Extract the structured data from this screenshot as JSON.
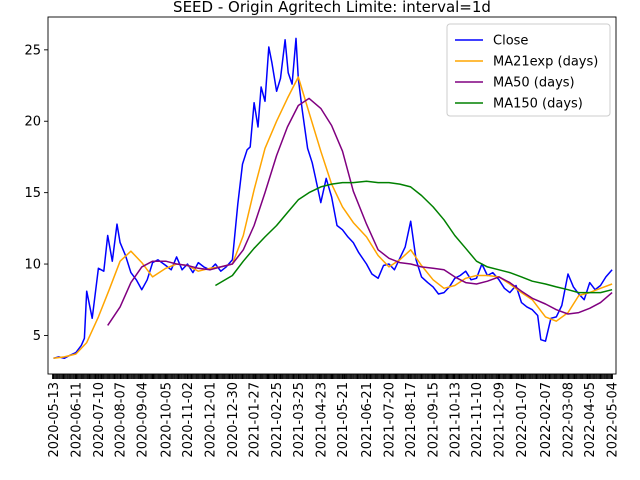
{
  "chart_data": {
    "type": "line",
    "title": "SEED - Origin Agritech Limite: interval=1d",
    "xlabel": "",
    "ylabel": "",
    "ylim": [
      2.3,
      27.3
    ],
    "yticks": [
      5,
      10,
      15,
      20,
      25
    ],
    "xlim": [
      "2020-05-06",
      "2022-05-09"
    ],
    "xtick_labels": [
      "2020-05-13",
      "2020-06-11",
      "2020-07-10",
      "2020-08-07",
      "2020-09-04",
      "2020-10-05",
      "2020-11-02",
      "2020-12-01",
      "2020-12-30",
      "2021-01-27",
      "2021-02-25",
      "2021-03-25",
      "2021-04-23",
      "2021-05-21",
      "2021-06-21",
      "2021-07-20",
      "2021-08-17",
      "2021-09-15",
      "2021-10-13",
      "2021-11-10",
      "2021-12-09",
      "2022-01-07",
      "2022-02-07",
      "2022-03-08",
      "2022-04-05",
      "2022-05-04"
    ],
    "grid": false,
    "legend_position": "top-right",
    "series": [
      {
        "name": "Close",
        "color": "#0000ff",
        "x": [
          "2020-05-13",
          "2020-05-20",
          "2020-05-27",
          "2020-06-03",
          "2020-06-11",
          "2020-06-18",
          "2020-06-22",
          "2020-06-25",
          "2020-07-02",
          "2020-07-10",
          "2020-07-17",
          "2020-07-22",
          "2020-07-28",
          "2020-08-03",
          "2020-08-07",
          "2020-08-14",
          "2020-08-21",
          "2020-08-28",
          "2020-09-04",
          "2020-09-11",
          "2020-09-18",
          "2020-09-25",
          "2020-10-05",
          "2020-10-12",
          "2020-10-19",
          "2020-10-26",
          "2020-11-02",
          "2020-11-09",
          "2020-11-16",
          "2020-11-23",
          "2020-12-01",
          "2020-12-08",
          "2020-12-15",
          "2020-12-22",
          "2020-12-30",
          "2021-01-06",
          "2021-01-12",
          "2021-01-18",
          "2021-01-22",
          "2021-01-27",
          "2021-02-01",
          "2021-02-05",
          "2021-02-10",
          "2021-02-15",
          "2021-02-19",
          "2021-02-25",
          "2021-03-02",
          "2021-03-08",
          "2021-03-12",
          "2021-03-17",
          "2021-03-22",
          "2021-03-25",
          "2021-03-30",
          "2021-04-06",
          "2021-04-12",
          "2021-04-16",
          "2021-04-23",
          "2021-04-30",
          "2021-05-07",
          "2021-05-14",
          "2021-05-21",
          "2021-05-28",
          "2021-06-04",
          "2021-06-11",
          "2021-06-21",
          "2021-06-28",
          "2021-07-06",
          "2021-07-13",
          "2021-07-20",
          "2021-07-27",
          "2021-08-03",
          "2021-08-10",
          "2021-08-17",
          "2021-08-24",
          "2021-08-31",
          "2021-09-08",
          "2021-09-15",
          "2021-09-22",
          "2021-09-29",
          "2021-10-06",
          "2021-10-13",
          "2021-10-20",
          "2021-10-27",
          "2021-11-03",
          "2021-11-10",
          "2021-11-17",
          "2021-11-24",
          "2021-12-01",
          "2021-12-09",
          "2021-12-16",
          "2021-12-23",
          "2021-12-31",
          "2022-01-07",
          "2022-01-14",
          "2022-01-21",
          "2022-01-28",
          "2022-02-01",
          "2022-02-07",
          "2022-02-14",
          "2022-02-21",
          "2022-02-28",
          "2022-03-08",
          "2022-03-15",
          "2022-03-22",
          "2022-03-29",
          "2022-04-05",
          "2022-04-12",
          "2022-04-19",
          "2022-04-26",
          "2022-05-04"
        ],
        "y": [
          3.4,
          3.5,
          3.4,
          3.6,
          3.8,
          4.3,
          4.8,
          8.1,
          6.2,
          9.7,
          9.5,
          12.0,
          10.2,
          12.8,
          11.5,
          10.6,
          9.4,
          8.9,
          8.2,
          8.9,
          10.1,
          10.3,
          9.9,
          9.6,
          10.5,
          9.6,
          10.0,
          9.4,
          10.1,
          9.8,
          9.6,
          10.0,
          9.5,
          9.8,
          10.3,
          14.2,
          17.0,
          18.0,
          18.2,
          21.3,
          19.6,
          22.4,
          21.4,
          25.2,
          24.1,
          22.1,
          23.0,
          25.7,
          23.4,
          22.6,
          25.8,
          23.0,
          20.8,
          18.1,
          17.1,
          16.1,
          14.3,
          16.0,
          14.7,
          12.7,
          12.4,
          11.9,
          11.5,
          10.8,
          10.0,
          9.3,
          9.0,
          9.9,
          10.0,
          9.6,
          10.4,
          11.2,
          13.0,
          10.3,
          9.1,
          8.7,
          8.4,
          7.9,
          8.0,
          8.4,
          9.0,
          9.2,
          9.5,
          8.9,
          9.0,
          10.0,
          9.2,
          9.4,
          8.9,
          8.3,
          8.0,
          8.5,
          7.3,
          7.0,
          6.8,
          6.4,
          4.7,
          4.6,
          6.2,
          6.3,
          7.1,
          9.3,
          8.4,
          7.9,
          7.5,
          8.7,
          8.2,
          8.5,
          9.1,
          9.6
        ]
      },
      {
        "name": "MA21exp (days)",
        "color": "#ffa500",
        "x": [
          "2020-05-13",
          "2020-05-27",
          "2020-06-11",
          "2020-06-25",
          "2020-07-10",
          "2020-07-24",
          "2020-08-07",
          "2020-08-21",
          "2020-09-04",
          "2020-09-18",
          "2020-10-05",
          "2020-10-19",
          "2020-11-02",
          "2020-11-16",
          "2020-12-01",
          "2020-12-15",
          "2020-12-30",
          "2021-01-13",
          "2021-01-27",
          "2021-02-10",
          "2021-02-25",
          "2021-03-11",
          "2021-03-25",
          "2021-04-08",
          "2021-04-23",
          "2021-05-07",
          "2021-05-21",
          "2021-06-04",
          "2021-06-21",
          "2021-07-06",
          "2021-07-20",
          "2021-08-03",
          "2021-08-17",
          "2021-08-31",
          "2021-09-15",
          "2021-09-29",
          "2021-10-13",
          "2021-10-27",
          "2021-11-10",
          "2021-11-24",
          "2021-12-09",
          "2021-12-23",
          "2022-01-07",
          "2022-01-21",
          "2022-02-07",
          "2022-02-21",
          "2022-03-08",
          "2022-03-22",
          "2022-04-05",
          "2022-04-19",
          "2022-05-04"
        ],
        "y": [
          3.4,
          3.5,
          3.7,
          4.5,
          6.3,
          8.2,
          10.2,
          10.9,
          10.1,
          9.1,
          9.7,
          10.0,
          9.9,
          9.5,
          9.7,
          9.8,
          10.0,
          12.0,
          15.2,
          18.1,
          20.0,
          21.6,
          23.1,
          20.6,
          17.9,
          15.6,
          14.0,
          12.9,
          11.9,
          10.6,
          9.8,
          10.3,
          11.0,
          9.9,
          8.9,
          8.3,
          8.5,
          9.0,
          9.2,
          9.2,
          9.1,
          8.6,
          8.0,
          7.5,
          6.3,
          6.0,
          6.6,
          7.8,
          8.0,
          8.3,
          8.6
        ]
      },
      {
        "name": "MA50 (days)",
        "color": "#800080",
        "x": [
          "2020-07-22",
          "2020-08-07",
          "2020-08-21",
          "2020-09-04",
          "2020-09-18",
          "2020-10-05",
          "2020-10-19",
          "2020-11-02",
          "2020-11-16",
          "2020-12-01",
          "2020-12-15",
          "2020-12-30",
          "2021-01-13",
          "2021-01-27",
          "2021-02-10",
          "2021-02-25",
          "2021-03-11",
          "2021-03-25",
          "2021-04-08",
          "2021-04-23",
          "2021-05-07",
          "2021-05-21",
          "2021-06-04",
          "2021-06-21",
          "2021-07-06",
          "2021-07-20",
          "2021-08-03",
          "2021-08-17",
          "2021-08-31",
          "2021-09-15",
          "2021-09-29",
          "2021-10-13",
          "2021-10-27",
          "2021-11-10",
          "2021-11-24",
          "2021-12-09",
          "2021-12-23",
          "2022-01-07",
          "2022-01-21",
          "2022-02-07",
          "2022-02-21",
          "2022-03-08",
          "2022-03-22",
          "2022-04-05",
          "2022-04-19",
          "2022-05-04"
        ],
        "y": [
          5.7,
          7.0,
          8.7,
          9.8,
          10.2,
          10.2,
          10.0,
          9.9,
          9.7,
          9.6,
          9.8,
          10.0,
          11.0,
          12.7,
          15.0,
          17.6,
          19.6,
          21.1,
          21.6,
          20.9,
          19.7,
          17.9,
          15.1,
          12.8,
          11.0,
          10.4,
          10.1,
          10.0,
          9.8,
          9.7,
          9.6,
          9.1,
          8.7,
          8.6,
          8.8,
          9.1,
          8.7,
          8.1,
          7.6,
          7.2,
          6.8,
          6.5,
          6.6,
          6.9,
          7.3,
          8.0
        ]
      },
      {
        "name": "MA150 (days)",
        "color": "#008000",
        "x": [
          "2020-12-08",
          "2020-12-30",
          "2021-01-13",
          "2021-01-27",
          "2021-02-10",
          "2021-02-25",
          "2021-03-11",
          "2021-03-25",
          "2021-04-08",
          "2021-04-23",
          "2021-05-07",
          "2021-05-21",
          "2021-06-04",
          "2021-06-21",
          "2021-07-06",
          "2021-07-20",
          "2021-08-03",
          "2021-08-17",
          "2021-08-31",
          "2021-09-15",
          "2021-09-29",
          "2021-10-13",
          "2021-10-27",
          "2021-11-10",
          "2021-11-24",
          "2021-12-09",
          "2021-12-23",
          "2022-01-07",
          "2022-01-21",
          "2022-02-07",
          "2022-02-21",
          "2022-03-08",
          "2022-03-22",
          "2022-04-05",
          "2022-04-19",
          "2022-05-04"
        ],
        "y": [
          8.5,
          9.2,
          10.2,
          11.1,
          11.9,
          12.7,
          13.6,
          14.5,
          15.0,
          15.4,
          15.6,
          15.7,
          15.7,
          15.8,
          15.7,
          15.7,
          15.6,
          15.4,
          14.8,
          14.0,
          13.1,
          12.0,
          11.1,
          10.2,
          9.8,
          9.6,
          9.4,
          9.1,
          8.8,
          8.6,
          8.4,
          8.2,
          8.0,
          8.0,
          8.0,
          8.2
        ]
      }
    ]
  }
}
